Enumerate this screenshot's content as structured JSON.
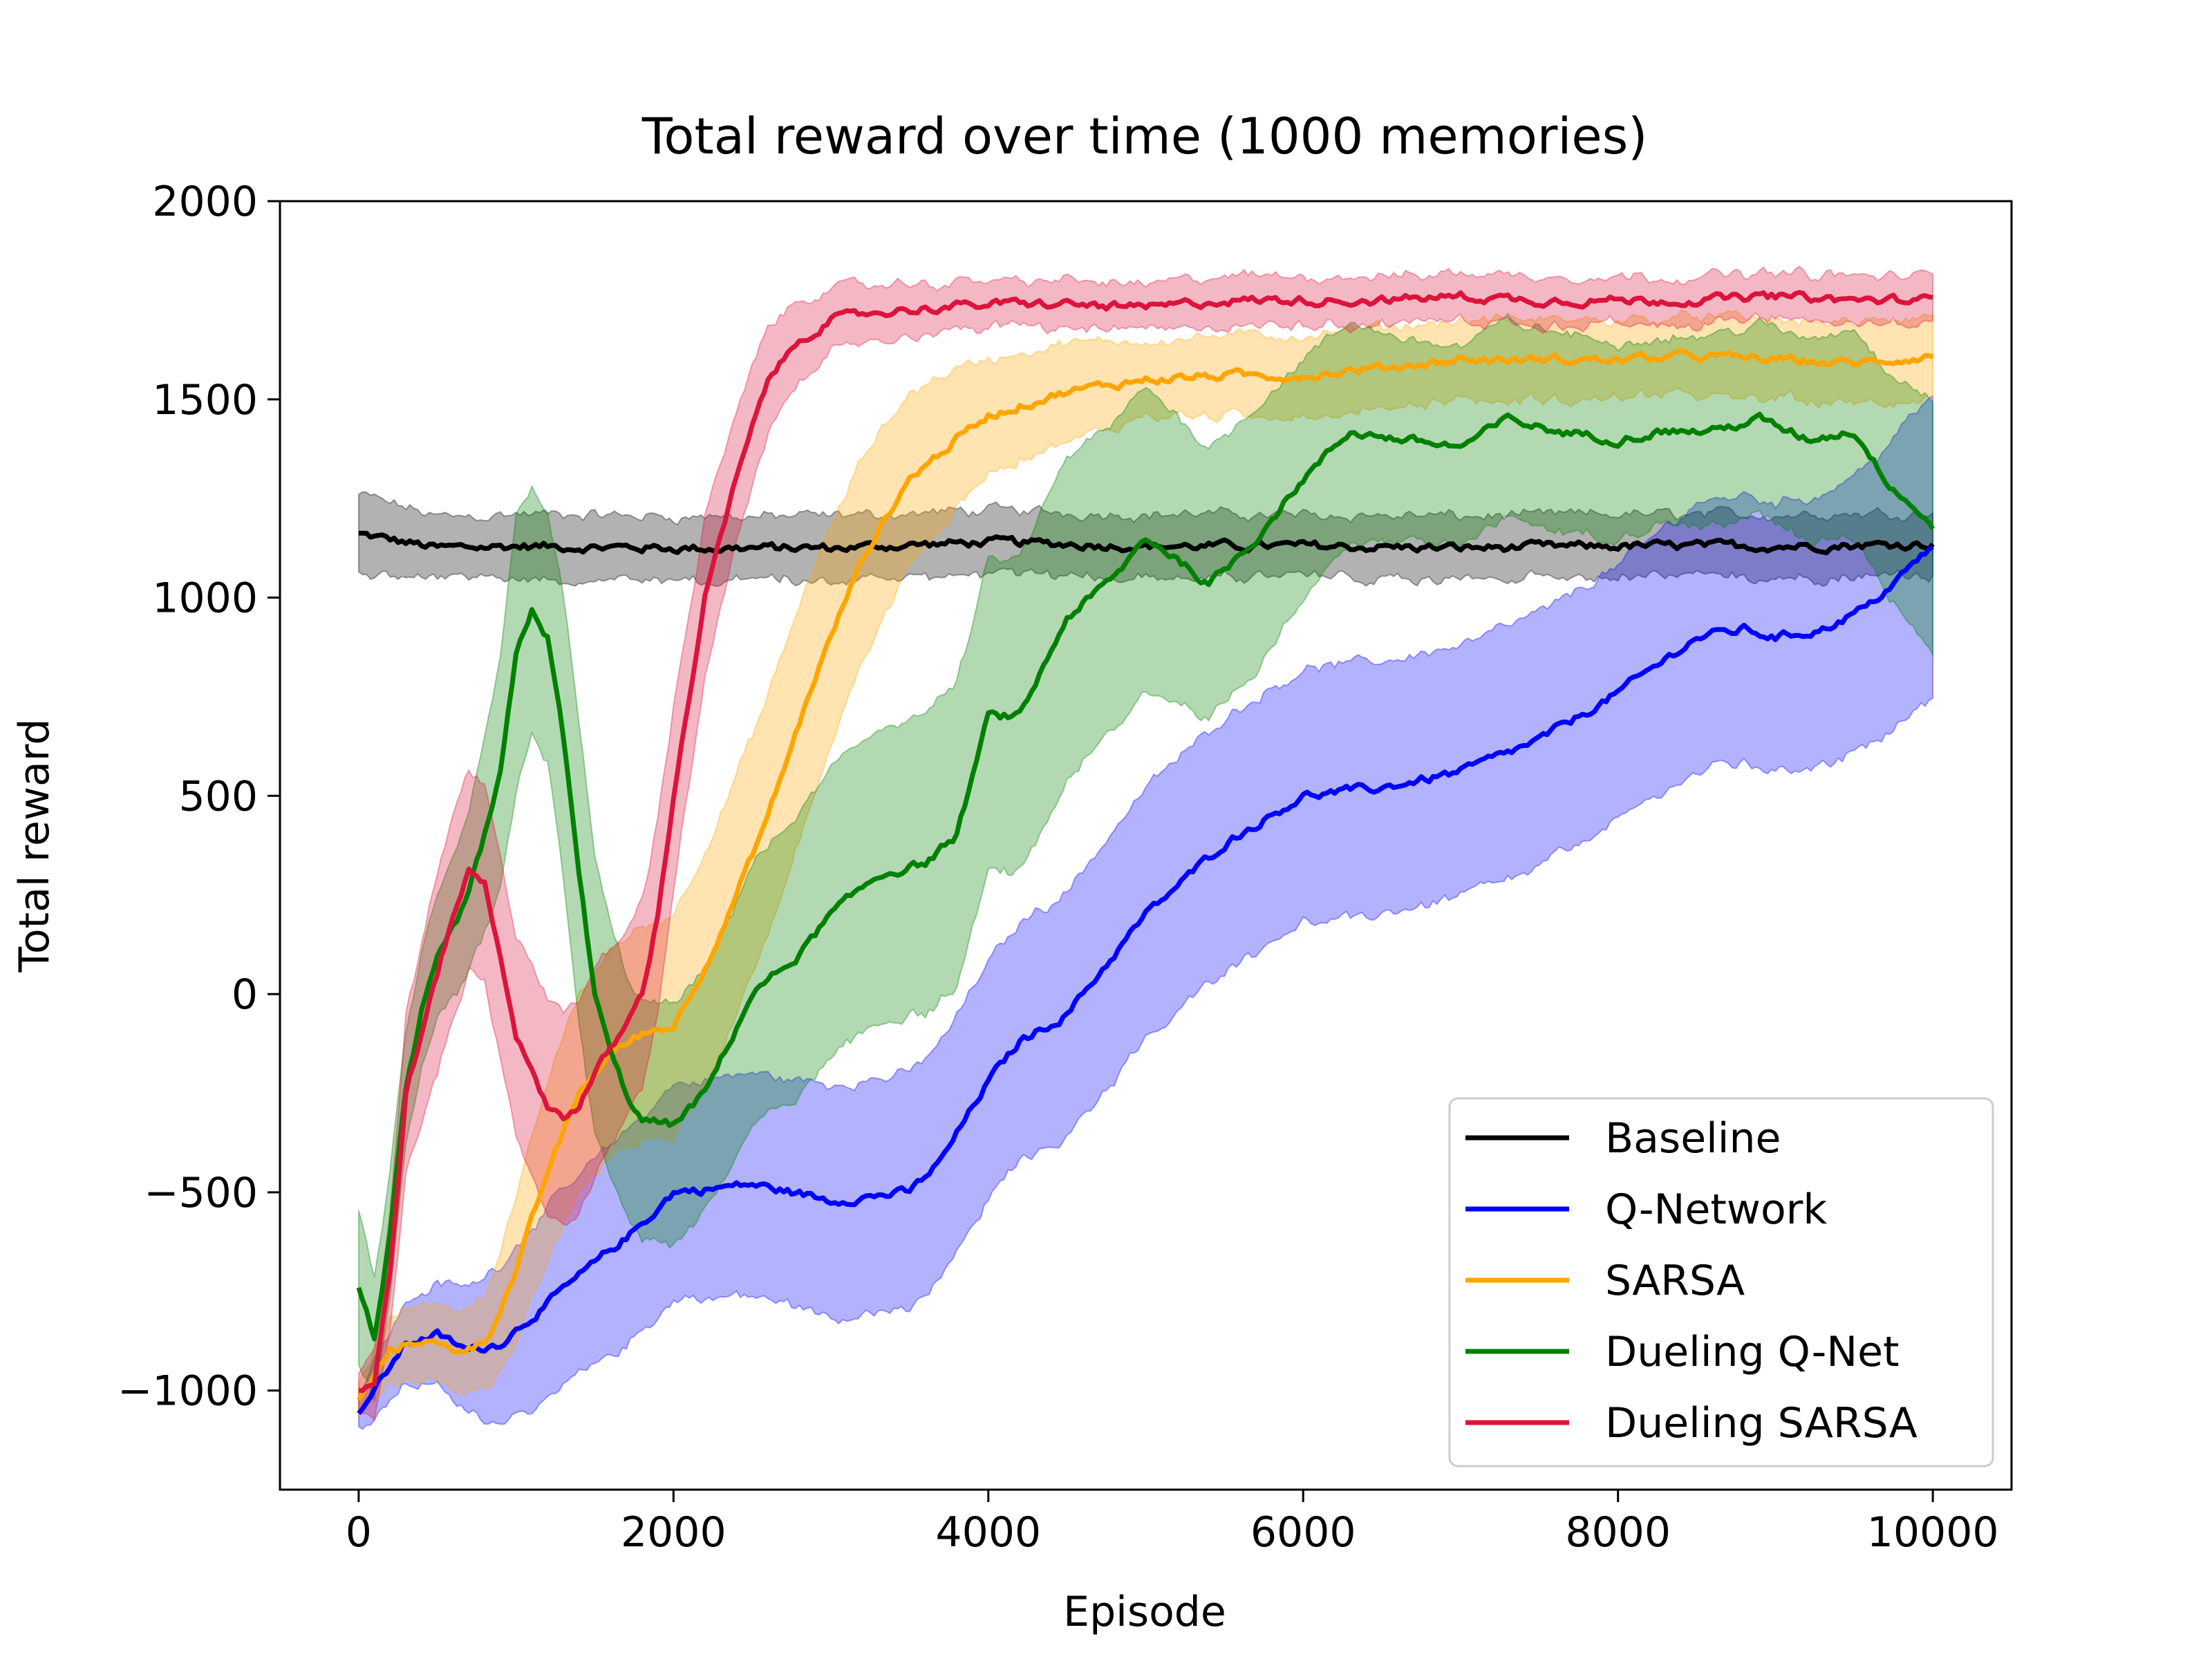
{
  "chart_data": {
    "type": "line",
    "title": "Total reward over time (1000 memories)",
    "xlabel": "Episode",
    "ylabel": "Total reward",
    "xlim": [
      -500,
      10500
    ],
    "ylim": [
      -1250,
      2000
    ],
    "xticks": [
      0,
      2000,
      4000,
      6000,
      8000,
      10000
    ],
    "xtick_labels": [
      "0",
      "2000",
      "4000",
      "6000",
      "8000",
      "10000"
    ],
    "yticks": [
      -1000,
      -500,
      0,
      500,
      1000,
      1500,
      2000
    ],
    "ytick_labels": [
      "−1000",
      "−500",
      "0",
      "500",
      "1000",
      "1500",
      "2000"
    ],
    "grid": false,
    "legend_position": "lower-right",
    "series": [
      {
        "name": "Baseline",
        "color": "#000000",
        "x": [
          0,
          500,
          1000,
          2000,
          3000,
          4000,
          5000,
          6000,
          7000,
          8000,
          9000,
          10000
        ],
        "y": [
          1160,
          1125,
          1130,
          1125,
          1125,
          1140,
          1130,
          1130,
          1125,
          1130,
          1130,
          1135
        ],
        "band": [
          100,
          80,
          80,
          80,
          80,
          80,
          80,
          80,
          80,
          80,
          80,
          80
        ]
      },
      {
        "name": "Q-Network",
        "color": "#0000ff",
        "x": [
          0,
          100,
          300,
          500,
          700,
          900,
          1200,
          1500,
          1800,
          2000,
          2500,
          3000,
          3500,
          3700,
          4000,
          4200,
          4500,
          5000,
          5500,
          6000,
          6500,
          7000,
          7500,
          8000,
          8500,
          8800,
          9000,
          9300,
          9600,
          10000
        ],
        "y": [
          -1050,
          -1000,
          -880,
          -860,
          -900,
          -880,
          -780,
          -680,
          -580,
          -500,
          -480,
          -520,
          -500,
          -420,
          -220,
          -120,
          -50,
          200,
          380,
          500,
          520,
          560,
          640,
          760,
          900,
          920,
          900,
          920,
          980,
          1130
        ],
        "band": [
          40,
          80,
          100,
          130,
          160,
          200,
          240,
          260,
          270,
          270,
          280,
          290,
          300,
          300,
          300,
          300,
          310,
          320,
          320,
          320,
          320,
          320,
          320,
          320,
          340,
          340,
          340,
          340,
          360,
          380
        ]
      },
      {
        "name": "SARSA",
        "color": "#ffa500",
        "x": [
          0,
          200,
          400,
          600,
          800,
          1000,
          1200,
          1400,
          1600,
          1800,
          2000,
          2300,
          2600,
          2900,
          3200,
          3500,
          3800,
          4000,
          4500,
          5000,
          5500,
          6000,
          6500,
          7000,
          7500,
          8000,
          8500,
          9000,
          9500,
          10000
        ],
        "y": [
          -1030,
          -900,
          -870,
          -900,
          -880,
          -700,
          -450,
          -250,
          -150,
          -100,
          -80,
          150,
          450,
          800,
          1100,
          1300,
          1400,
          1460,
          1520,
          1550,
          1560,
          1560,
          1580,
          1600,
          1600,
          1600,
          1610,
          1600,
          1590,
          1610
        ],
        "band": [
          40,
          80,
          100,
          100,
          120,
          180,
          230,
          250,
          260,
          270,
          280,
          300,
          300,
          290,
          250,
          220,
          180,
          140,
          120,
          100,
          100,
          100,
          100,
          100,
          100,
          100,
          100,
          100,
          100,
          100
        ]
      },
      {
        "name": "Dueling Q-Net",
        "color": "#008000",
        "x": [
          0,
          100,
          200,
          300,
          400,
          500,
          700,
          900,
          1000,
          1100,
          1200,
          1300,
          1400,
          1500,
          1600,
          1700,
          1800,
          2000,
          2200,
          2500,
          2800,
          3000,
          3300,
          3600,
          3800,
          4000,
          4200,
          4500,
          4800,
          5000,
          5200,
          5400,
          5700,
          6000,
          6300,
          6600,
          7000,
          7300,
          7600,
          8000,
          8300,
          8600,
          8900,
          9200,
          9500,
          9700,
          10000
        ],
        "y": [
          -740,
          -870,
          -600,
          -250,
          -50,
          80,
          250,
          550,
          850,
          970,
          900,
          650,
          300,
          0,
          -150,
          -250,
          -320,
          -330,
          -250,
          0,
          100,
          200,
          300,
          330,
          400,
          700,
          700,
          950,
          1050,
          1150,
          1100,
          1030,
          1150,
          1300,
          1420,
          1400,
          1380,
          1450,
          1420,
          1400,
          1420,
          1420,
          1450,
          1400,
          1420,
          1300,
          1180
        ],
        "band": [
          200,
          150,
          150,
          150,
          150,
          150,
          200,
          300,
          350,
          320,
          320,
          350,
          380,
          350,
          320,
          300,
          300,
          300,
          300,
          330,
          350,
          370,
          370,
          380,
          380,
          390,
          400,
          400,
          390,
          380,
          360,
          350,
          330,
          300,
          270,
          260,
          250,
          250,
          250,
          240,
          240,
          240,
          240,
          250,
          260,
          280,
          320
        ]
      },
      {
        "name": "Dueling SARSA",
        "color": "#dc143c",
        "x": [
          0,
          100,
          200,
          300,
          400,
          500,
          600,
          700,
          800,
          900,
          1000,
          1100,
          1200,
          1300,
          1400,
          1500,
          1600,
          1700,
          1800,
          1900,
          2000,
          2200,
          2400,
          2600,
          2800,
          3000,
          3300,
          3600,
          4000,
          4500,
          5000,
          5500,
          6000,
          6500,
          7000,
          7500,
          8000,
          8500,
          9000,
          9500,
          10000
        ],
        "y": [
          -1000,
          -980,
          -700,
          -250,
          -100,
          50,
          200,
          310,
          280,
          100,
          -100,
          -200,
          -280,
          -310,
          -280,
          -200,
          -140,
          -80,
          0,
          200,
          500,
          1000,
          1300,
          1550,
          1650,
          1700,
          1720,
          1730,
          1740,
          1740,
          1730,
          1750,
          1750,
          1750,
          1760,
          1750,
          1750,
          1750,
          1760,
          1750,
          1750
        ],
        "band": [
          40,
          80,
          150,
          200,
          230,
          250,
          260,
          250,
          250,
          250,
          250,
          260,
          270,
          270,
          270,
          260,
          250,
          240,
          240,
          240,
          230,
          200,
          170,
          130,
          100,
          80,
          70,
          60,
          60,
          60,
          60,
          60,
          60,
          60,
          60,
          60,
          60,
          60,
          60,
          60,
          60
        ]
      }
    ]
  }
}
